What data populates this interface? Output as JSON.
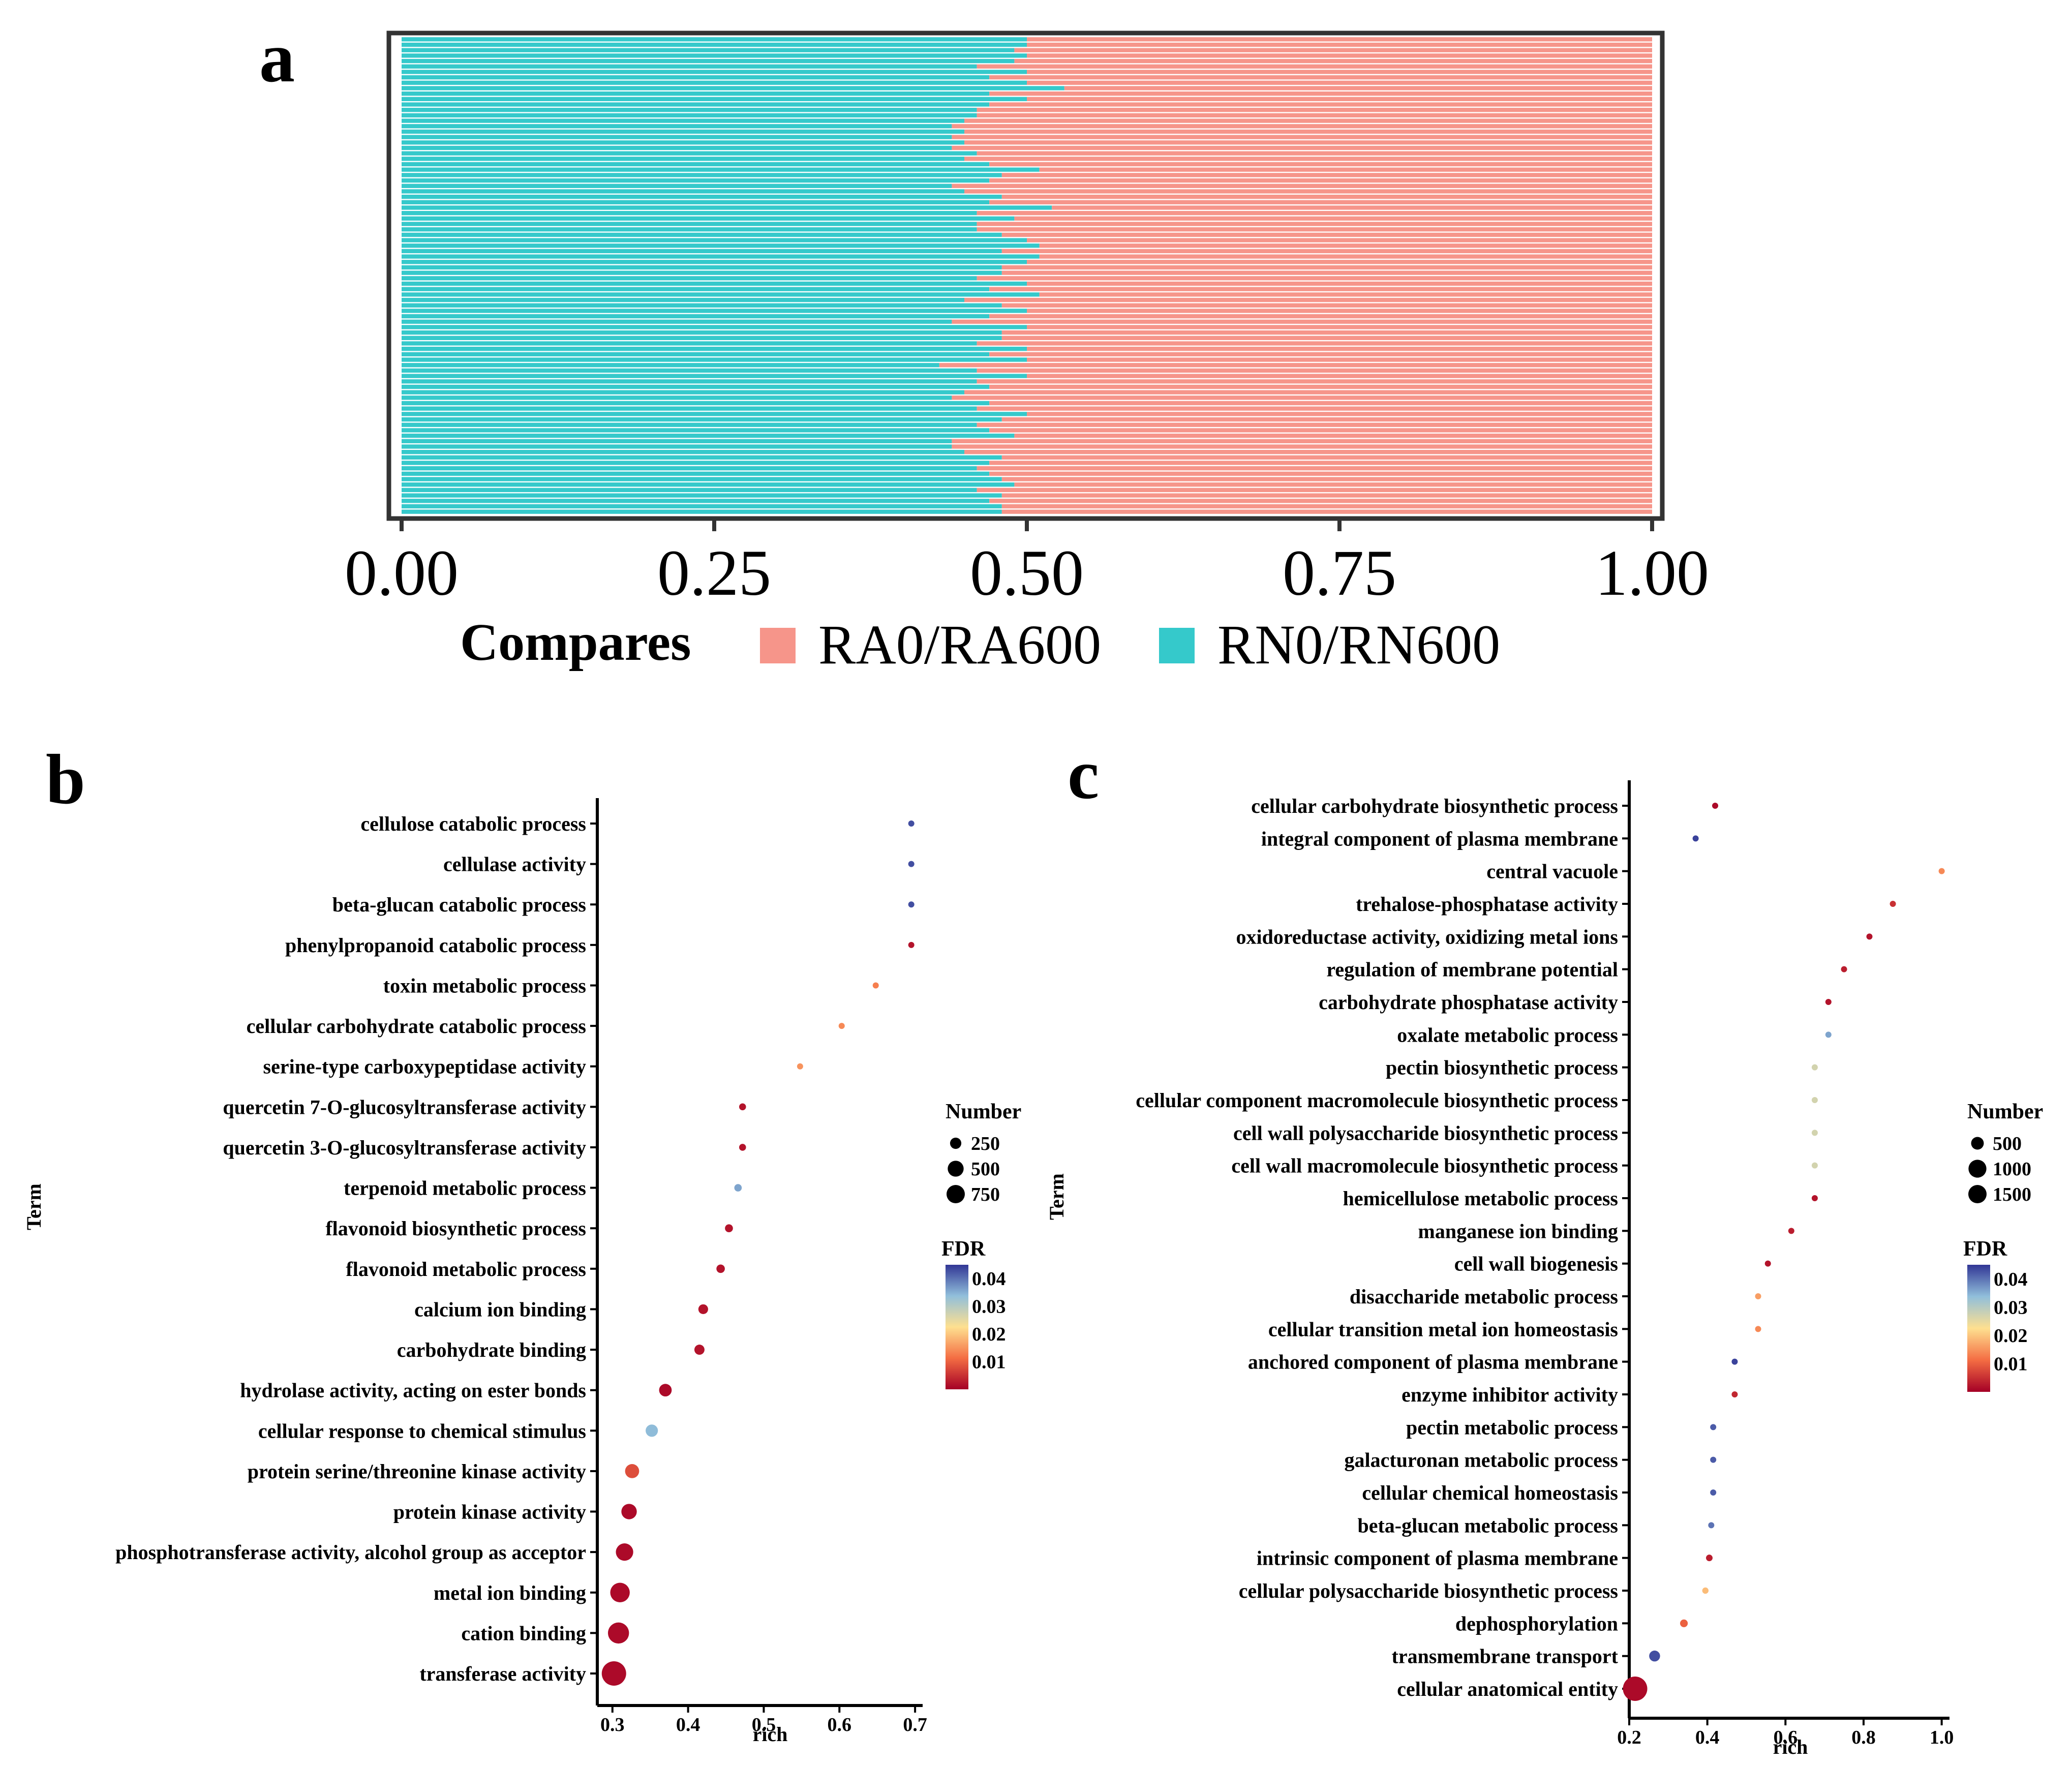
{
  "chart_data": [
    {
      "panel": "a",
      "type": "bar",
      "stacked": true,
      "orientation": "horizontal",
      "legend_title": "Compares",
      "legend_position": "bottom",
      "x_ticks": [
        "0.00",
        "0.25",
        "0.50",
        "0.75",
        "1.00"
      ],
      "xlim": [
        0,
        1
      ],
      "series": [
        {
          "name": "RN0/RN600",
          "color": "#35C9CB"
        },
        {
          "name": "RA0/RA600",
          "color": "#F6958A"
        }
      ],
      "rn_fraction": [
        0.5,
        0.5,
        0.49,
        0.5,
        0.49,
        0.46,
        0.5,
        0.47,
        0.5,
        0.53,
        0.47,
        0.5,
        0.47,
        0.46,
        0.46,
        0.45,
        0.44,
        0.45,
        0.44,
        0.45,
        0.44,
        0.46,
        0.45,
        0.47,
        0.51,
        0.48,
        0.47,
        0.44,
        0.45,
        0.48,
        0.47,
        0.52,
        0.46,
        0.49,
        0.46,
        0.46,
        0.48,
        0.5,
        0.51,
        0.48,
        0.51,
        0.5,
        0.48,
        0.48,
        0.46,
        0.5,
        0.47,
        0.51,
        0.45,
        0.48,
        0.5,
        0.47,
        0.44,
        0.5,
        0.48,
        0.48,
        0.46,
        0.5,
        0.47,
        0.5,
        0.43,
        0.46,
        0.5,
        0.46,
        0.47,
        0.45,
        0.44,
        0.47,
        0.46,
        0.5,
        0.48,
        0.46,
        0.47,
        0.49,
        0.44,
        0.44,
        0.45,
        0.48,
        0.47,
        0.46,
        0.47,
        0.48,
        0.49,
        0.46,
        0.48,
        0.47,
        0.48,
        0.48
      ]
    },
    {
      "panel": "b",
      "type": "scatter",
      "title": "",
      "xlabel": "rich",
      "ylabel": "Term",
      "xlim": [
        0.28,
        0.71
      ],
      "x_ticks": [
        "0.3",
        "0.4",
        "0.5",
        "0.6",
        "0.7"
      ],
      "size_legend_title": "Number",
      "size_legend": [
        "250",
        "500",
        "750"
      ],
      "color_legend_title": "FDR",
      "color_legend": [
        "0.04",
        "0.03",
        "0.02",
        "0.01"
      ],
      "terms": [
        "cellulose catabolic process",
        "cellulase activity",
        "beta-glucan catabolic process",
        "phenylpropanoid catabolic process",
        "toxin metabolic process",
        "cellular carbohydrate catabolic process",
        "serine-type carboxypeptidase activity",
        "quercetin 7-O-glucosyltransferase activity",
        "quercetin 3-O-glucosyltransferase activity",
        "terpenoid metabolic process",
        "flavonoid biosynthetic process",
        "flavonoid metabolic process",
        "calcium ion binding",
        "carbohydrate binding",
        "hydrolase activity, acting on ester bonds",
        "cellular response to chemical stimulus",
        "protein serine/threonine kinase activity",
        "protein kinase activity",
        "phosphotransferase activity, alcohol group as acceptor",
        "metal ion binding",
        "cation binding",
        "transferase activity"
      ],
      "rich": [
        0.695,
        0.695,
        0.695,
        0.695,
        0.648,
        0.603,
        0.548,
        0.472,
        0.472,
        0.466,
        0.454,
        0.443,
        0.42,
        0.415,
        0.37,
        0.352,
        0.326,
        0.322,
        0.316,
        0.31,
        0.308,
        0.302
      ],
      "number": [
        20,
        20,
        20,
        25,
        30,
        35,
        40,
        60,
        60,
        70,
        80,
        90,
        120,
        130,
        200,
        190,
        250,
        300,
        380,
        480,
        560,
        750
      ],
      "fdr": [
        0.043,
        0.043,
        0.043,
        0.002,
        0.013,
        0.014,
        0.015,
        0.002,
        0.002,
        0.036,
        0.002,
        0.002,
        0.002,
        0.002,
        0.001,
        0.034,
        0.008,
        0.001,
        0.001,
        0.001,
        0.001,
        0.001
      ]
    },
    {
      "panel": "c",
      "type": "scatter",
      "title": "",
      "xlabel": "rich",
      "ylabel": "Term",
      "xlim": [
        0.2,
        1.02
      ],
      "x_ticks": [
        "0.2",
        "0.4",
        "0.6",
        "0.8",
        "1.0"
      ],
      "size_legend_title": "Number",
      "size_legend": [
        "500",
        "1000",
        "1500"
      ],
      "color_legend_title": "FDR",
      "color_legend": [
        "0.04",
        "0.03",
        "0.02",
        "0.01"
      ],
      "terms": [
        "cellular carbohydrate biosynthetic process",
        "integral component of plasma membrane",
        "central vacuole",
        "trehalose-phosphatase activity",
        "oxidoreductase activity, oxidizing metal ions",
        "regulation of membrane potential",
        "carbohydrate phosphatase activity",
        "oxalate metabolic process",
        "pectin biosynthetic process",
        "cellular component macromolecule biosynthetic process",
        "cell wall polysaccharide biosynthetic process",
        "cell wall macromolecule biosynthetic process",
        "hemicellulose metabolic process",
        "manganese ion binding",
        "cell wall biogenesis",
        "disaccharide metabolic process",
        "cellular transition metal ion homeostasis",
        "anchored component of plasma membrane",
        "enzyme inhibitor activity",
        "pectin metabolic process",
        "galacturonan metabolic process",
        "cellular chemical homeostasis",
        "beta-glucan metabolic process",
        "intrinsic component of plasma membrane",
        "cellular polysaccharide biosynthetic process",
        "dephosphorylation",
        "transmembrane transport",
        "cellular anatomical entity"
      ],
      "rich": [
        0.42,
        0.37,
        1.0,
        0.875,
        0.815,
        0.75,
        0.71,
        0.71,
        0.675,
        0.675,
        0.675,
        0.675,
        0.675,
        0.615,
        0.555,
        0.53,
        0.53,
        0.47,
        0.47,
        0.415,
        0.415,
        0.415,
        0.41,
        0.405,
        0.395,
        0.34,
        0.265,
        0.215
      ],
      "number": [
        40,
        45,
        20,
        20,
        30,
        30,
        40,
        35,
        40,
        40,
        40,
        40,
        45,
        50,
        55,
        60,
        60,
        75,
        80,
        85,
        85,
        85,
        90,
        110,
        100,
        150,
        300,
        1500
      ],
      "fdr": [
        0.001,
        0.044,
        0.014,
        0.005,
        0.002,
        0.003,
        0.002,
        0.036,
        0.027,
        0.027,
        0.027,
        0.027,
        0.002,
        0.003,
        0.002,
        0.016,
        0.014,
        0.044,
        0.004,
        0.042,
        0.042,
        0.042,
        0.04,
        0.003,
        0.019,
        0.01,
        0.043,
        0.001
      ]
    }
  ],
  "labels": {
    "panel_a": "a",
    "panel_b": "b",
    "panel_c": "c",
    "legend_title_a": "Compares",
    "legend_ra": "RA0/RA600",
    "legend_rn": "RN0/RN600",
    "term": "Term",
    "rich": "rich",
    "number": "Number",
    "fdr": "FDR"
  }
}
